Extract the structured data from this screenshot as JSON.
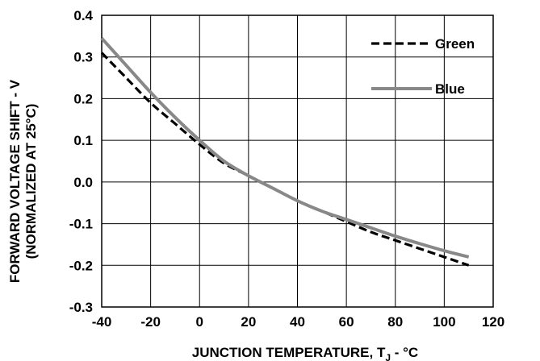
{
  "chart_data": {
    "type": "line",
    "xlabel_main": "JUNCTION TEMPERATURE, T",
    "xlabel_sub": "J",
    "xlabel_tail": " - °C",
    "ylabel_line1": "FORWARD VOLTAGE SHIFT - V",
    "ylabel_line2": "(NORMALIZED AT 25°C)",
    "xlim": [
      -40,
      120
    ],
    "ylim": [
      -0.3,
      0.4
    ],
    "x_ticks": [
      -40,
      -20,
      0,
      20,
      40,
      60,
      80,
      100,
      120
    ],
    "x_tick_labels": [
      "-40",
      "-20",
      "0",
      "20",
      "40",
      "60",
      "80",
      "100",
      "120"
    ],
    "y_ticks": [
      0.4,
      0.3,
      0.2,
      0.1,
      0.0,
      -0.1,
      -0.2,
      -0.3
    ],
    "y_tick_labels": [
      "0.4",
      "0.3",
      "0.2",
      "0.1",
      "0.0",
      "-0.1",
      "-0.2",
      "-0.3"
    ],
    "grid": true,
    "legend_position": "top-right",
    "series": [
      {
        "name": "Green",
        "style": "dashed",
        "color": "#000000",
        "x": [
          -40,
          -30,
          -20,
          -10,
          0,
          10,
          20,
          30,
          40,
          50,
          60,
          70,
          80,
          90,
          100,
          110
        ],
        "y": [
          0.31,
          0.25,
          0.19,
          0.14,
          0.09,
          0.045,
          0.015,
          -0.015,
          -0.045,
          -0.07,
          -0.095,
          -0.12,
          -0.14,
          -0.16,
          -0.18,
          -0.2
        ]
      },
      {
        "name": "Blue",
        "style": "solid",
        "color": "#888888",
        "x": [
          -40,
          -30,
          -20,
          -10,
          0,
          10,
          20,
          30,
          40,
          50,
          60,
          70,
          80,
          90,
          100,
          110
        ],
        "y": [
          0.345,
          0.28,
          0.215,
          0.155,
          0.1,
          0.05,
          0.015,
          -0.015,
          -0.045,
          -0.07,
          -0.09,
          -0.11,
          -0.13,
          -0.148,
          -0.165,
          -0.18
        ]
      }
    ]
  }
}
